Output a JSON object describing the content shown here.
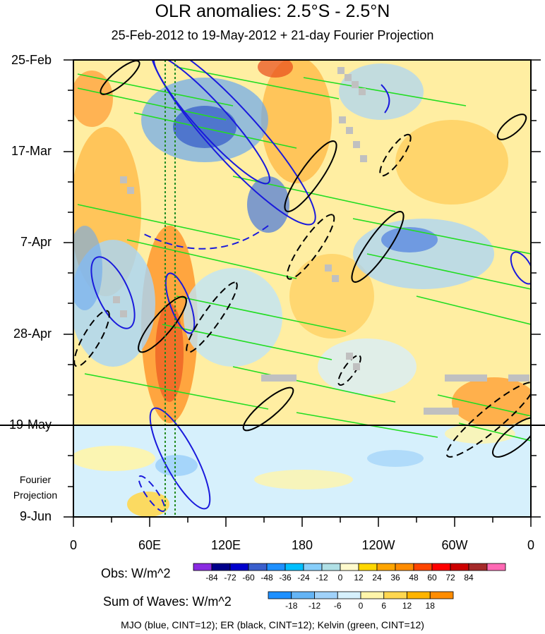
{
  "title": "OLR anomalies: 2.5°S - 2.5°N",
  "subtitle": "25-Feb-2012 to 19-May-2012 + 21-day Fourier Projection",
  "footnote": "MJO (blue, CINT=12); ER (black, CINT=12); Kelvin (green, CINT=12)",
  "projection_label": [
    "Fourier",
    "Projection"
  ],
  "chart_data": {
    "type": "heatmap",
    "xlabel": "",
    "ylabel": "",
    "x_ticks": [
      "0",
      "60E",
      "120E",
      "180",
      "120W",
      "60W",
      "0"
    ],
    "y_ticks": [
      "25-Feb",
      "17-Mar",
      "7-Apr",
      "28-Apr",
      "19-May",
      "9-Jun"
    ],
    "longitude_range": [
      0,
      360
    ],
    "date_range": [
      "25-Feb-2012",
      "9-Jun-2012"
    ],
    "observation_end": "19-May",
    "reference_lines_longitude": [
      72,
      80
    ],
    "colorbar_obs": {
      "label": "Obs: W/m^2",
      "ticks": [
        "-84",
        "-72",
        "-60",
        "-48",
        "-36",
        "-24",
        "-12",
        "0",
        "12",
        "24",
        "36",
        "48",
        "60",
        "72",
        "84"
      ],
      "colors": [
        "#8a2be2",
        "#00008b",
        "#0000cd",
        "#3a5fcd",
        "#1e90ff",
        "#00bfff",
        "#87cefa",
        "#b0e0e6",
        "#fffacd",
        "#ffd700",
        "#ffa500",
        "#ff8c00",
        "#ff4500",
        "#ff0000",
        "#cd0000",
        "#a52a2a",
        "#ff69b4"
      ]
    },
    "colorbar_waves": {
      "label": "Sum of Waves: W/m^2",
      "ticks": [
        "-18",
        "-12",
        "-6",
        "0",
        "6",
        "12",
        "18"
      ],
      "colors": [
        "#1e90ff",
        "#64b4f5",
        "#a0d2fa",
        "#d6f0fc",
        "#fff5aa",
        "#ffd750",
        "#ffb400",
        "#ff8c00"
      ]
    },
    "series": [
      {
        "name": "MJO",
        "color": "#1a1adc"
      },
      {
        "name": "ER",
        "color": "#000000"
      },
      {
        "name": "Kelvin",
        "color": "#22dd22"
      }
    ]
  }
}
